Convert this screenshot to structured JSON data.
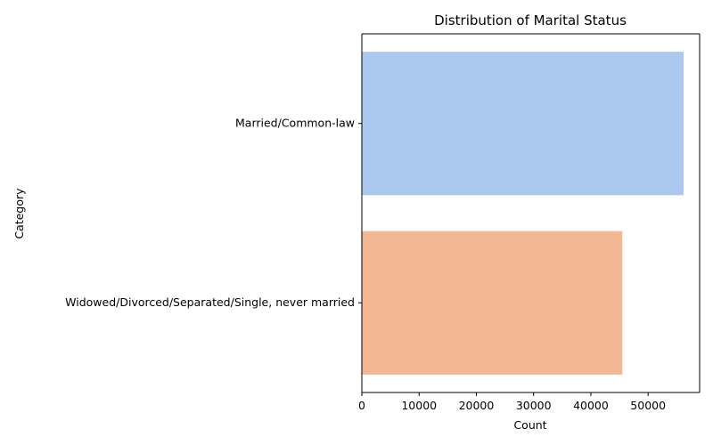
{
  "chart_data": {
    "type": "bar",
    "orientation": "horizontal",
    "title": "Distribution of Marital Status",
    "xlabel": "Count",
    "ylabel": "Category",
    "categories": [
      "Married/Common-law",
      "Widowed/Divorced/Separated/Single, never married"
    ],
    "values": [
      56200,
      45500
    ],
    "colors": [
      "#abc9ee",
      "#f1b893"
    ],
    "xlim": [
      0,
      59000
    ],
    "xticks": [
      0,
      10000,
      20000,
      30000,
      40000,
      50000
    ],
    "xtick_labels": [
      "0",
      "10000",
      "20000",
      "30000",
      "40000",
      "50000"
    ],
    "grid": false,
    "legend": "none"
  }
}
